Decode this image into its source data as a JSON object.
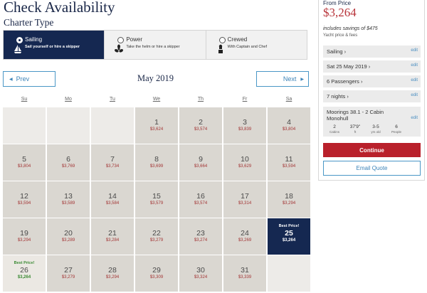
{
  "header": {
    "title": "Check Availability",
    "charter_type_label": "Charter Type"
  },
  "charter_types": [
    {
      "title": "Sailing",
      "desc": "Sail yourself or hire a skipper",
      "icon": "sailboat-icon",
      "selected": true
    },
    {
      "title": "Power",
      "desc": "Take the helm or hire a skipper",
      "icon": "propeller-icon",
      "selected": false
    },
    {
      "title": "Crewed",
      "desc": "With Captain and Chef",
      "icon": "chef-icon",
      "selected": false
    }
  ],
  "calendar": {
    "prev_label": "Prev",
    "next_label": "Next",
    "month": "May 2019",
    "weekdays": [
      "Su",
      "Mo",
      "Tu",
      "We",
      "Th",
      "Fr",
      "Sa"
    ],
    "best_price_label": "Best Price!",
    "weeks": [
      [
        {},
        {},
        {},
        {
          "day": "1",
          "price": "$3,624"
        },
        {
          "day": "2",
          "price": "$3,574"
        },
        {
          "day": "3",
          "price": "$3,839"
        },
        {
          "day": "4",
          "price": "$3,804"
        }
      ],
      [
        {
          "day": "5",
          "price": "$3,804"
        },
        {
          "day": "6",
          "price": "$3,769"
        },
        {
          "day": "7",
          "price": "$3,734"
        },
        {
          "day": "8",
          "price": "$3,699"
        },
        {
          "day": "9",
          "price": "$3,664"
        },
        {
          "day": "10",
          "price": "$3,629"
        },
        {
          "day": "11",
          "price": "$3,594"
        }
      ],
      [
        {
          "day": "12",
          "price": "$3,594"
        },
        {
          "day": "13",
          "price": "$3,589"
        },
        {
          "day": "14",
          "price": "$3,584"
        },
        {
          "day": "15",
          "price": "$3,579"
        },
        {
          "day": "16",
          "price": "$3,574"
        },
        {
          "day": "17",
          "price": "$3,314"
        },
        {
          "day": "18",
          "price": "$3,294"
        }
      ],
      [
        {
          "day": "19",
          "price": "$3,294"
        },
        {
          "day": "20",
          "price": "$3,289"
        },
        {
          "day": "21",
          "price": "$3,284"
        },
        {
          "day": "22",
          "price": "$3,279"
        },
        {
          "day": "23",
          "price": "$3,274"
        },
        {
          "day": "24",
          "price": "$3,269"
        },
        {
          "day": "25",
          "price": "$3,264",
          "best": true,
          "selected": true
        }
      ],
      [
        {
          "day": "26",
          "price": "$3,264",
          "best": true
        },
        {
          "day": "27",
          "price": "$3,279"
        },
        {
          "day": "28",
          "price": "$3,294"
        },
        {
          "day": "29",
          "price": "$3,309"
        },
        {
          "day": "30",
          "price": "$3,324"
        },
        {
          "day": "31",
          "price": "$3,339"
        },
        {}
      ]
    ]
  },
  "summary": {
    "from_label": "From Price",
    "price": "$3,264",
    "savings": "includes savings of $475",
    "price_note": "Yacht price & fees",
    "edit_label": "edit",
    "rows": [
      {
        "label": "Sailing ›"
      },
      {
        "label": "Sat 25 May 2019 ›"
      },
      {
        "label": "6 Passengers ›"
      },
      {
        "label": "7 nights ›"
      }
    ],
    "boat": {
      "name": "Moorings 38.1 - 2 Cabin Monohull",
      "specs": [
        {
          "value": "2",
          "label": "Cabins"
        },
        {
          "value": "37'9\"",
          "label": "ft"
        },
        {
          "value": "3-5",
          "label": "yrs old"
        },
        {
          "value": "6",
          "label": "People"
        }
      ]
    },
    "continue_label": "Continue",
    "email_label": "Email Quote"
  },
  "colors": {
    "navy": "#152851",
    "accent_red": "#b9202b",
    "link_blue": "#3b83b8",
    "best_green": "#3a8a33"
  }
}
